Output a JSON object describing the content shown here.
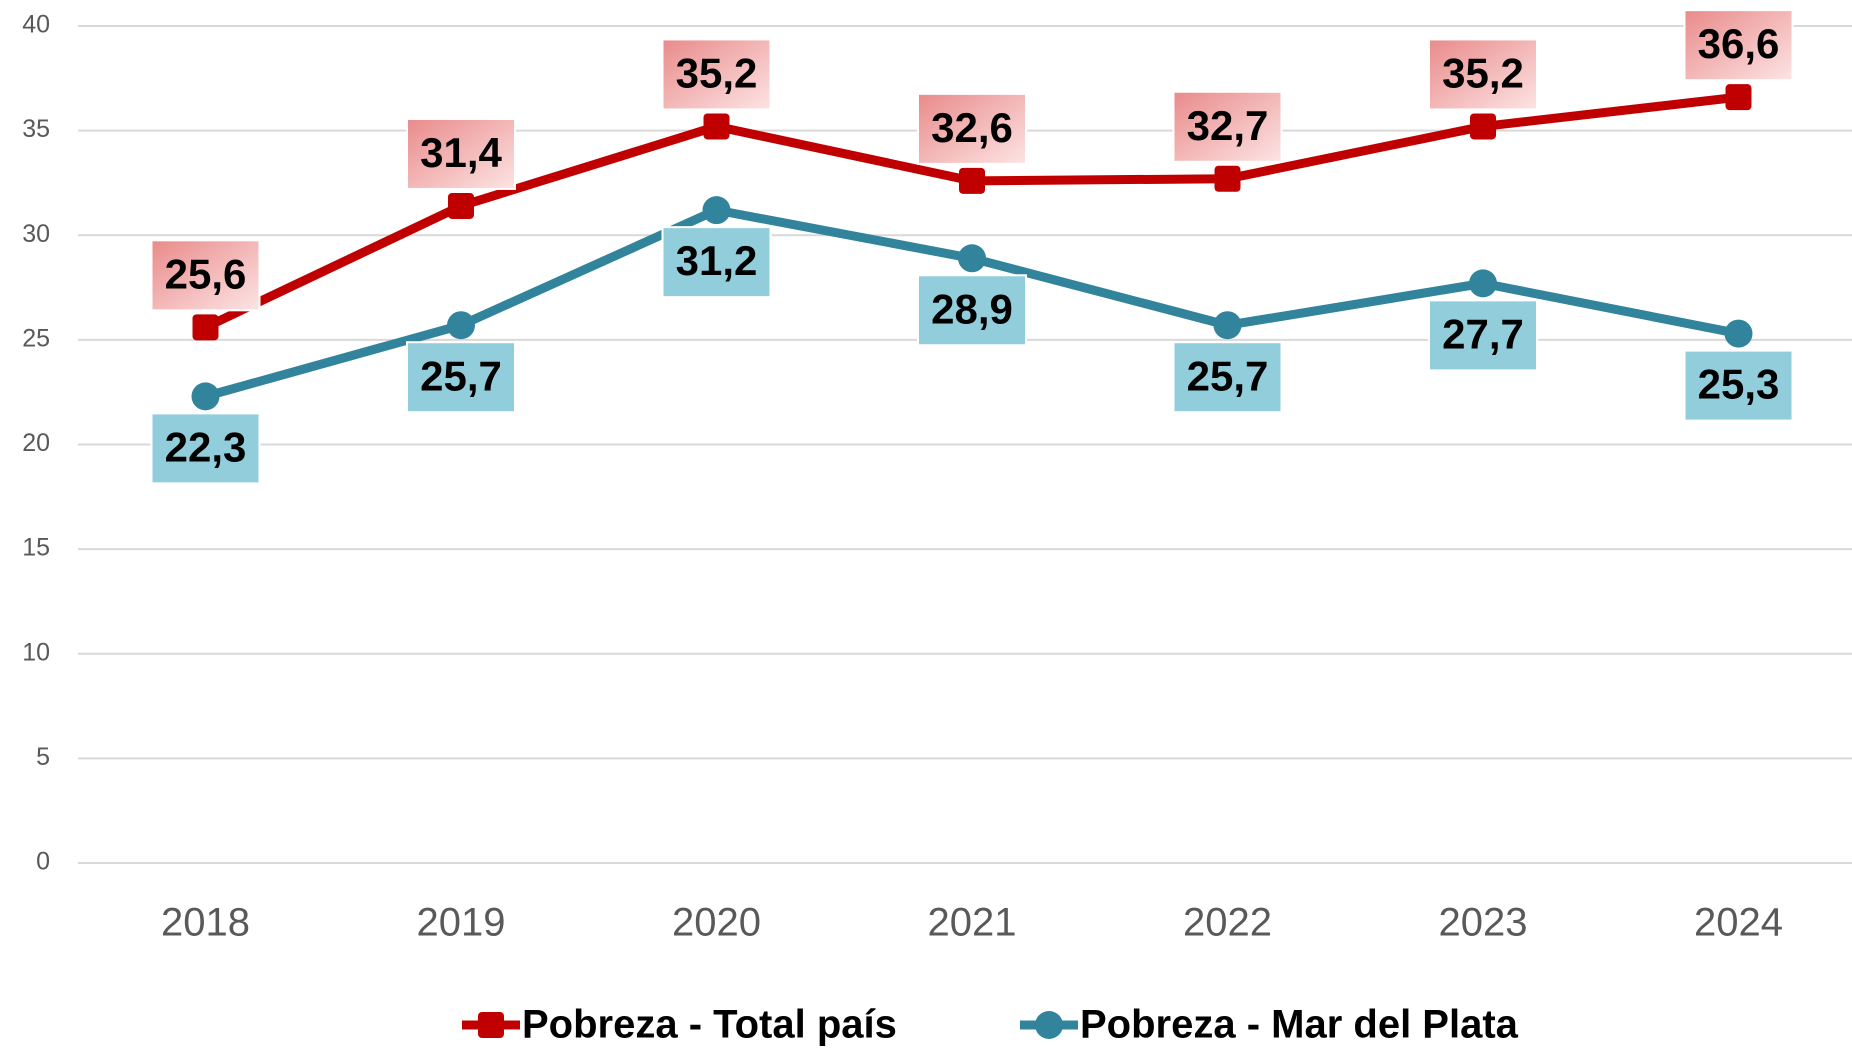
{
  "chart_data": {
    "type": "line",
    "categories": [
      "2018",
      "2019",
      "2020",
      "2021",
      "2022",
      "2023",
      "2024"
    ],
    "series": [
      {
        "name": "Pobreza - Total país",
        "color": "#c00000",
        "marker": "square",
        "values": [
          25.6,
          31.4,
          35.2,
          32.6,
          32.7,
          35.2,
          36.6
        ],
        "value_labels": [
          "25,6",
          "31,4",
          "35,2",
          "32,6",
          "32,7",
          "35,2",
          "36,6"
        ]
      },
      {
        "name": "Pobreza - Mar del Plata",
        "color": "#31849b",
        "marker": "circle",
        "values": [
          22.3,
          25.7,
          31.2,
          28.9,
          25.7,
          27.7,
          25.3
        ],
        "value_labels": [
          "22,3",
          "25,7",
          "31,2",
          "28,9",
          "25,7",
          "27,7",
          "25,3"
        ]
      }
    ],
    "ylim": [
      0,
      40
    ],
    "yticks": [
      0,
      5,
      10,
      15,
      20,
      25,
      30,
      35,
      40
    ],
    "grid": true,
    "legend": "bottom"
  }
}
